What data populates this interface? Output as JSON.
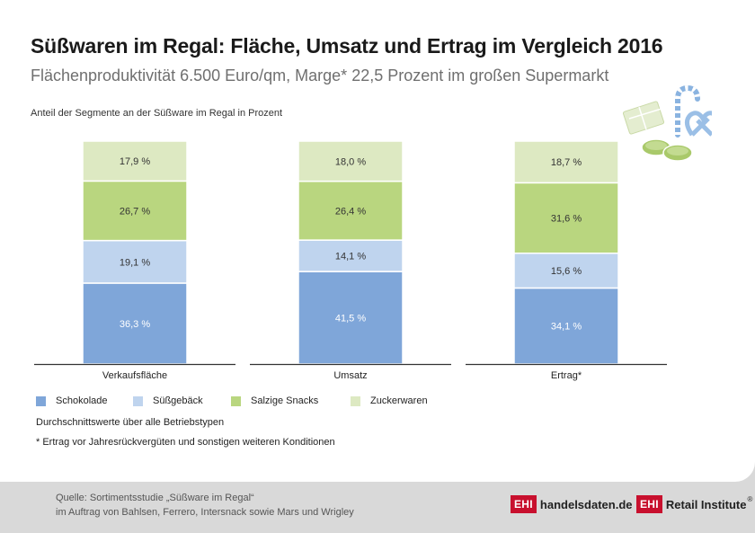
{
  "title": "Süßwaren im Regal: Fläche, Umsatz und Ertrag im Vergleich 2016",
  "subtitle": "Flächenproduktivität 6.500 Euro/qm, Marge* 22,5 Prozent im großen Supermarkt",
  "axis_caption": "Anteil der Segmente an der Süßware im Regal in Prozent",
  "notes": {
    "average": "Durchschnittswerte über alle Betriebstypen",
    "footnote": "* Ertrag vor Jahresrückvergüten und sonstigen weiteren Konditionen"
  },
  "source": {
    "line1": "Quelle: Sortimentsstudie „Süßware im Regal“",
    "line2": "im Auftrag von Bahlsen, Ferrero, Intersnack sowie Mars und Wrigley"
  },
  "logos": {
    "ehi_mark": "EHI",
    "handelsdaten": "handelsdaten.de",
    "retail_institute": "Retail Institute",
    "registered": "®"
  },
  "colors": {
    "schokolade": "#7fa6d9",
    "suessgebaeck": "#bfd4ee",
    "salzige_snacks": "#b9d67f",
    "zuckerwaren": "#dde9c2"
  },
  "chart_data": {
    "type": "bar",
    "stacked": true,
    "categories": [
      "Verkaufsfläche",
      "Umsatz",
      "Ertrag*"
    ],
    "series": [
      {
        "name": "Schokolade",
        "key": "schokolade",
        "values": [
          36.3,
          41.5,
          34.1
        ],
        "labels": [
          "36,3 %",
          "41,5 %",
          "34,1 %"
        ]
      },
      {
        "name": "Süßgebäck",
        "key": "suessgebaeck",
        "values": [
          19.1,
          14.1,
          15.6
        ],
        "labels": [
          "19,1 %",
          "14,1 %",
          "15,6 %"
        ]
      },
      {
        "name": "Salzige Snacks",
        "key": "salzige_snacks",
        "values": [
          26.7,
          26.4,
          31.6
        ],
        "labels": [
          "26,7 %",
          "26,4 %",
          "31,6 %"
        ]
      },
      {
        "name": "Zuckerwaren",
        "key": "zuckerwaren",
        "values": [
          17.9,
          18.0,
          18.7
        ],
        "labels": [
          "17,9 %",
          "18,0 %",
          "18,7 %"
        ]
      }
    ],
    "title": "Süßwaren im Regal: Fläche, Umsatz und Ertrag im Vergleich 2016",
    "ylabel": "Anteil der Segmente an der Süßware im Regal in Prozent",
    "ylim": [
      0,
      100
    ],
    "grid": false,
    "legend": "bottom"
  }
}
